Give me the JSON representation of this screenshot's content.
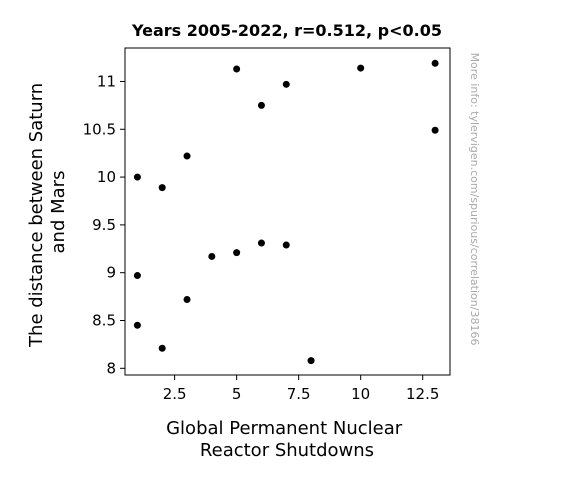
{
  "chart_data": {
    "type": "scatter",
    "title": "Years 2005-2022, r=0.512, p<0.05",
    "xlabel_lines": [
      "Global Permanent Nuclear",
      "Reactor Shutdowns"
    ],
    "ylabel_lines": [
      "The distance between Saturn",
      "and Mars"
    ],
    "watermark": "More info: tylervigen.com/spurious/correlation/38166",
    "xlim": [
      0.5,
      13.6
    ],
    "ylim": [
      7.93,
      11.35
    ],
    "xticks": [
      2.5,
      5,
      7.5,
      10,
      12.5
    ],
    "xtick_labels": [
      "2.5",
      "5",
      "7.5",
      "10",
      "12.5"
    ],
    "yticks": [
      8,
      8.5,
      9,
      9.5,
      10,
      10.5,
      11
    ],
    "ytick_labels": [
      "8",
      "8.5",
      "9",
      "9.5",
      "10",
      "10.5",
      "11"
    ],
    "grid": false,
    "marker_color": "#000000",
    "points": [
      {
        "x": 1,
        "y": 10.0
      },
      {
        "x": 1,
        "y": 8.97
      },
      {
        "x": 1,
        "y": 8.45
      },
      {
        "x": 2,
        "y": 9.89
      },
      {
        "x": 2,
        "y": 8.21
      },
      {
        "x": 3,
        "y": 10.22
      },
      {
        "x": 3,
        "y": 8.72
      },
      {
        "x": 4,
        "y": 9.17
      },
      {
        "x": 5,
        "y": 11.13
      },
      {
        "x": 5,
        "y": 9.21
      },
      {
        "x": 6,
        "y": 10.75
      },
      {
        "x": 6,
        "y": 9.31
      },
      {
        "x": 7,
        "y": 10.97
      },
      {
        "x": 7,
        "y": 9.29
      },
      {
        "x": 8,
        "y": 8.08
      },
      {
        "x": 10,
        "y": 11.14
      },
      {
        "x": 13,
        "y": 11.19
      },
      {
        "x": 13,
        "y": 10.49
      }
    ]
  }
}
